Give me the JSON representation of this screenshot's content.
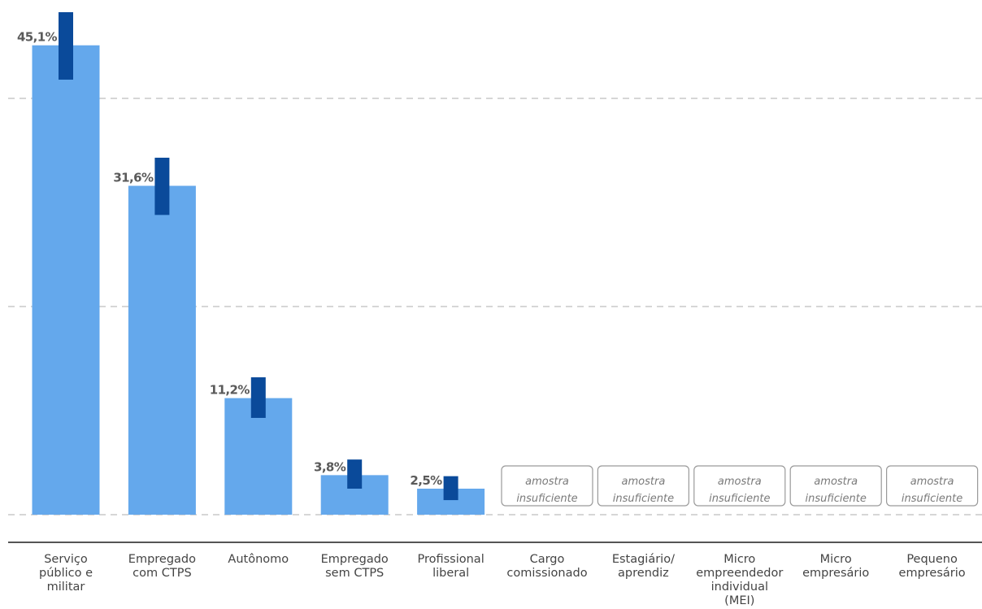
{
  "chart_data": {
    "type": "bar",
    "title": "",
    "xlabel": "",
    "ylabel": "",
    "ylim": [
      0,
      48
    ],
    "grid": true,
    "categories": [
      "Serviço público e militar",
      "Empregado com CTPS",
      "Autônomo",
      "Empregado sem CTPS",
      "Profissional liberal",
      "Cargo comissionado",
      "Estagiário/ aprendiz",
      "Micro empreendedor individual (MEI)",
      "Micro empresário",
      "Pequeno empresário"
    ],
    "category_label_lines": [
      [
        "Serviço",
        "público e",
        "militar"
      ],
      [
        "Empregado",
        "com CTPS"
      ],
      [
        "Autônomo"
      ],
      [
        "Empregado",
        "sem CTPS"
      ],
      [
        "Profissional",
        "liberal"
      ],
      [
        "Cargo",
        "comissionado"
      ],
      [
        "Estagiário/",
        "aprendiz"
      ],
      [
        "Micro",
        "empreendedor",
        "individual",
        "(MEI)"
      ],
      [
        "Micro",
        "empresário"
      ],
      [
        "Pequeno",
        "empresário"
      ]
    ],
    "values": [
      45.1,
      31.6,
      11.2,
      3.8,
      2.5,
      null,
      null,
      null,
      null,
      null
    ],
    "value_labels": [
      "45,1%",
      "31,6%",
      "11,2%",
      "3,8%",
      "2,5%",
      "",
      "",
      "",
      "",
      ""
    ],
    "error_ranges": [
      [
        41.8,
        48.3
      ],
      [
        28.8,
        34.3
      ],
      [
        9.3,
        13.2
      ],
      [
        2.5,
        5.3
      ],
      [
        1.4,
        3.7
      ],
      null,
      null,
      null,
      null,
      null
    ],
    "insufficient_sample_text": [
      "amostra",
      "insuficiente"
    ],
    "gridlines": [
      0,
      20,
      40
    ],
    "colors": {
      "bar": "#64a8ec",
      "error_bar": "#0a4a9a",
      "grid": "#d6d6d6",
      "axis": "#555555",
      "value_label": "#5a5a5a",
      "category_label": "#444444",
      "insufficient_border": "#9a9a9a",
      "insufficient_text": "#7a7a7a"
    }
  }
}
